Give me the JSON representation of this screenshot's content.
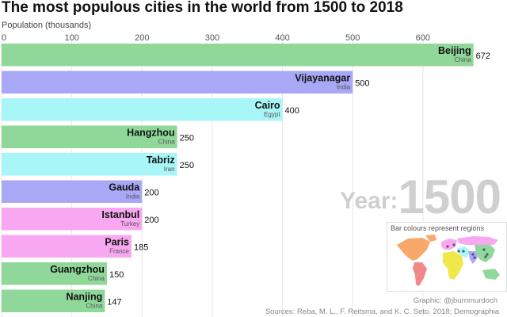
{
  "title": "The most populous cities in the world from 1500 to 2018",
  "year_prefix": "Year:",
  "year": "1500",
  "legend_title": "Bar colours represent regions",
  "credit": "Graphic: @jburnmurdoch",
  "sources": "Sources: Reba, M. L., F. Reitsma, and K. C. Seto. 2018; Demographia",
  "colors": {
    "east_asia": "#8fd89a",
    "south_asia": "#a9a8f7",
    "middle_east": "#a8f6f8",
    "europe": "#f8a8f0",
    "americas": "#f7a86a",
    "africa": "#f0e84a",
    "latin_america": "#f08a8a"
  },
  "chart_data": {
    "type": "bar",
    "orientation": "horizontal",
    "xlabel": "Population (thousands)",
    "xlim": [
      0,
      700
    ],
    "xticks": [
      0,
      100,
      200,
      300,
      400,
      500,
      600
    ],
    "grid": true,
    "bars": [
      {
        "city": "Beijing",
        "country": "China",
        "value": 672,
        "region": "east_asia"
      },
      {
        "city": "Vijayanagar",
        "country": "India",
        "value": 500,
        "region": "south_asia"
      },
      {
        "city": "Cairo",
        "country": "Egypt",
        "value": 400,
        "region": "middle_east"
      },
      {
        "city": "Hangzhou",
        "country": "China",
        "value": 250,
        "region": "east_asia"
      },
      {
        "city": "Tabriz",
        "country": "Iran",
        "value": 250,
        "region": "middle_east"
      },
      {
        "city": "Gauda",
        "country": "India",
        "value": 200,
        "region": "south_asia"
      },
      {
        "city": "Istanbul",
        "country": "Turkey",
        "value": 200,
        "region": "europe"
      },
      {
        "city": "Paris",
        "country": "France",
        "value": 185,
        "region": "europe"
      },
      {
        "city": "Guangzhou",
        "country": "China",
        "value": 150,
        "region": "east_asia"
      },
      {
        "city": "Nanjing",
        "country": "China",
        "value": 147,
        "region": "east_asia"
      }
    ]
  }
}
